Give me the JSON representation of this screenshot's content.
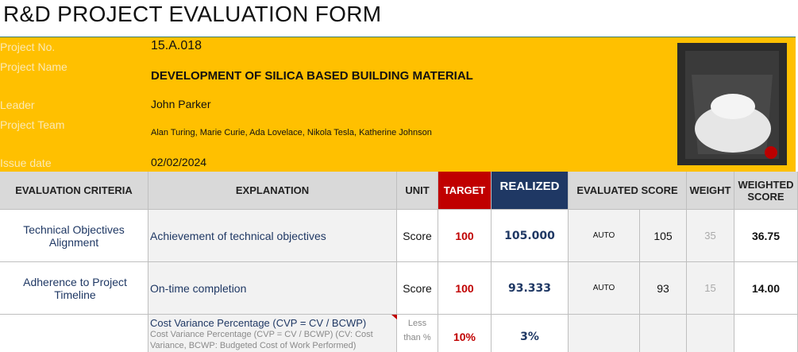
{
  "header": {
    "title": "R&D PROJECT EVALUATION FORM"
  },
  "project": {
    "fields": [
      {
        "label": "Project No.",
        "value": "15.A.018"
      },
      {
        "label": "Project Name",
        "value": "DEVELOPMENT OF SILICA BASED BUILDING MATERIAL"
      },
      {
        "label": "Leader",
        "value": "John Parker"
      },
      {
        "label": "Project Team",
        "value": "Alan Turing, Marie Curie, Ada Lovelace, Nikola Tesla, Katherine Johnson"
      },
      {
        "label": "Issue date",
        "value": "02/02/2024"
      }
    ]
  },
  "table": {
    "columns": [
      "EVALUATION CRITERIA",
      "EXPLANATION",
      "UNIT",
      "TARGET",
      "REALIZED",
      "EVALUATED SCORE",
      "WEIGHT",
      "WEIGHTED SCORE"
    ],
    "rows": [
      {
        "criteria": "Technical Objectives Alignment",
        "explanation": "Achievement of technical objectives",
        "unit": "Score",
        "target": "100",
        "realized": "105.000",
        "method": "AUTO",
        "score": "105",
        "weight": "35",
        "weighted": "36.75"
      },
      {
        "criteria": "Adherence to Project Timeline",
        "explanation": "On-time completion",
        "unit": "Score",
        "target": "100",
        "realized": "93.333",
        "method": "AUTO",
        "score": "93",
        "weight": "15",
        "weighted": "14.00"
      },
      {
        "explanation": "Cost Variance Percentage (CVP = CV / BCWP)",
        "note": "Cost Variance Percentage (CVP = CV / BCWP) (CV: Cost Variance, BCWP: Budgeted Cost of Work Performed)",
        "unit": "Less than %",
        "target": "10%",
        "realized": "3%"
      }
    ]
  }
}
